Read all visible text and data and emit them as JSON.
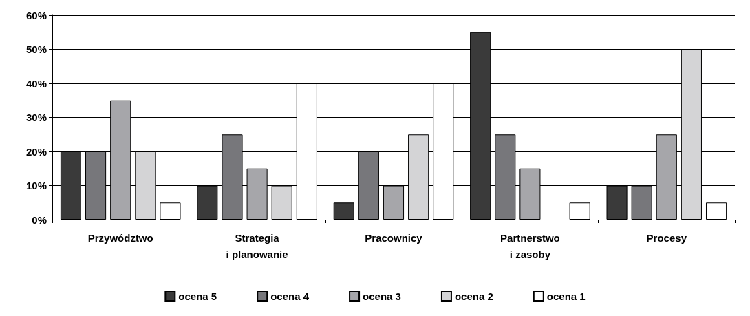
{
  "chart_data": {
    "type": "bar",
    "categories": [
      "Przywództwo",
      "Strategia\ni planowanie",
      "Pracownicy",
      "Partnerstwo\ni zasoby",
      "Procesy"
    ],
    "series": [
      {
        "name": "ocena 5",
        "color": "#3a3a3a",
        "values": [
          20,
          10,
          5,
          55,
          10
        ]
      },
      {
        "name": "ocena 4",
        "color": "#77777b",
        "values": [
          20,
          25,
          20,
          25,
          10
        ]
      },
      {
        "name": "ocena 3",
        "color": "#a6a6aa",
        "values": [
          35,
          15,
          10,
          15,
          25
        ]
      },
      {
        "name": "ocena 2",
        "color": "#d4d4d6",
        "values": [
          20,
          10,
          25,
          null,
          50
        ]
      },
      {
        "name": "ocena 1",
        "color": "#ffffff",
        "values": [
          5,
          40,
          40,
          5,
          5
        ]
      }
    ],
    "ylim": [
      0,
      60
    ],
    "yticks": [
      {
        "value": 0,
        "label": "0%"
      },
      {
        "value": 10,
        "label": "10%"
      },
      {
        "value": 20,
        "label": "20%"
      },
      {
        "value": 30,
        "label": "30%"
      },
      {
        "value": 40,
        "label": "40%"
      },
      {
        "value": 50,
        "label": "50%"
      },
      {
        "value": 60,
        "label": "60%"
      }
    ],
    "grid": "y",
    "legend": "bottom"
  }
}
